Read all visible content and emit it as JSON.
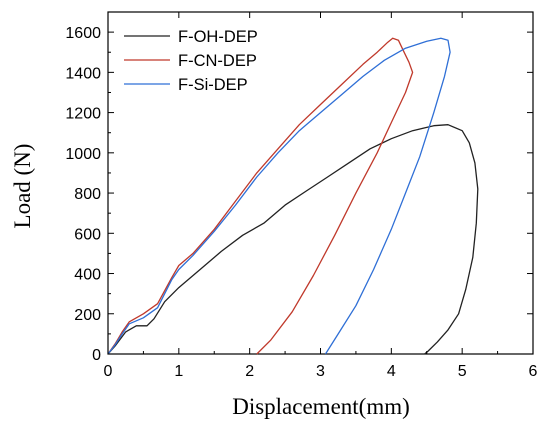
{
  "chart_data": {
    "type": "line",
    "title": "",
    "xlabel": "Displacement(mm)",
    "ylabel": "Load (N)",
    "xlim": [
      0,
      6
    ],
    "ylim": [
      0,
      1700
    ],
    "xticks": [
      "0",
      "1",
      "2",
      "3",
      "4",
      "5",
      "6"
    ],
    "yticks": [
      "0",
      "200",
      "400",
      "600",
      "800",
      "1000",
      "1200",
      "1400",
      "1600"
    ],
    "grid": false,
    "legend_position": "top-left",
    "series": [
      {
        "name": "F-OH-DEP",
        "color": "#222222",
        "points": [
          [
            0.0,
            0
          ],
          [
            0.1,
            40
          ],
          [
            0.25,
            110
          ],
          [
            0.4,
            140
          ],
          [
            0.55,
            140
          ],
          [
            0.65,
            175
          ],
          [
            0.8,
            260
          ],
          [
            1.0,
            330
          ],
          [
            1.3,
            420
          ],
          [
            1.6,
            510
          ],
          [
            1.9,
            590
          ],
          [
            2.2,
            650
          ],
          [
            2.5,
            740
          ],
          [
            2.8,
            810
          ],
          [
            3.1,
            880
          ],
          [
            3.4,
            950
          ],
          [
            3.7,
            1020
          ],
          [
            4.0,
            1070
          ],
          [
            4.3,
            1110
          ],
          [
            4.6,
            1135
          ],
          [
            4.8,
            1140
          ],
          [
            5.0,
            1110
          ],
          [
            5.1,
            1050
          ],
          [
            5.18,
            950
          ],
          [
            5.22,
            820
          ],
          [
            5.2,
            650
          ],
          [
            5.15,
            480
          ],
          [
            5.05,
            320
          ],
          [
            4.95,
            200
          ],
          [
            4.8,
            120
          ],
          [
            4.65,
            60
          ],
          [
            4.52,
            15
          ],
          [
            4.47,
            0
          ]
        ]
      },
      {
        "name": "F-CN-DEP",
        "color": "#c0392b",
        "points": [
          [
            0.0,
            0
          ],
          [
            0.1,
            50
          ],
          [
            0.2,
            110
          ],
          [
            0.3,
            160
          ],
          [
            0.5,
            200
          ],
          [
            0.7,
            250
          ],
          [
            0.9,
            380
          ],
          [
            1.0,
            440
          ],
          [
            1.2,
            500
          ],
          [
            1.5,
            620
          ],
          [
            1.8,
            760
          ],
          [
            2.1,
            900
          ],
          [
            2.4,
            1020
          ],
          [
            2.7,
            1140
          ],
          [
            3.0,
            1240
          ],
          [
            3.3,
            1340
          ],
          [
            3.6,
            1440
          ],
          [
            3.8,
            1500
          ],
          [
            3.95,
            1550
          ],
          [
            4.02,
            1570
          ],
          [
            4.1,
            1560
          ],
          [
            4.18,
            1500
          ],
          [
            4.25,
            1450
          ],
          [
            4.3,
            1400
          ],
          [
            4.2,
            1300
          ],
          [
            4.0,
            1150
          ],
          [
            3.8,
            1000
          ],
          [
            3.5,
            800
          ],
          [
            3.2,
            590
          ],
          [
            2.9,
            390
          ],
          [
            2.6,
            210
          ],
          [
            2.3,
            70
          ],
          [
            2.1,
            0
          ]
        ]
      },
      {
        "name": "F-Si-DEP",
        "color": "#2f6fd6",
        "points": [
          [
            0.0,
            0
          ],
          [
            0.1,
            45
          ],
          [
            0.2,
            100
          ],
          [
            0.3,
            150
          ],
          [
            0.5,
            180
          ],
          [
            0.7,
            230
          ],
          [
            0.9,
            370
          ],
          [
            1.0,
            420
          ],
          [
            1.2,
            490
          ],
          [
            1.5,
            610
          ],
          [
            1.8,
            740
          ],
          [
            2.1,
            880
          ],
          [
            2.4,
            1000
          ],
          [
            2.7,
            1110
          ],
          [
            3.0,
            1200
          ],
          [
            3.3,
            1290
          ],
          [
            3.6,
            1380
          ],
          [
            3.9,
            1460
          ],
          [
            4.2,
            1520
          ],
          [
            4.5,
            1555
          ],
          [
            4.7,
            1570
          ],
          [
            4.8,
            1560
          ],
          [
            4.83,
            1500
          ],
          [
            4.75,
            1380
          ],
          [
            4.6,
            1200
          ],
          [
            4.4,
            980
          ],
          [
            4.2,
            800
          ],
          [
            4.0,
            620
          ],
          [
            3.75,
            420
          ],
          [
            3.5,
            240
          ],
          [
            3.25,
            100
          ],
          [
            3.07,
            0
          ]
        ]
      }
    ]
  }
}
